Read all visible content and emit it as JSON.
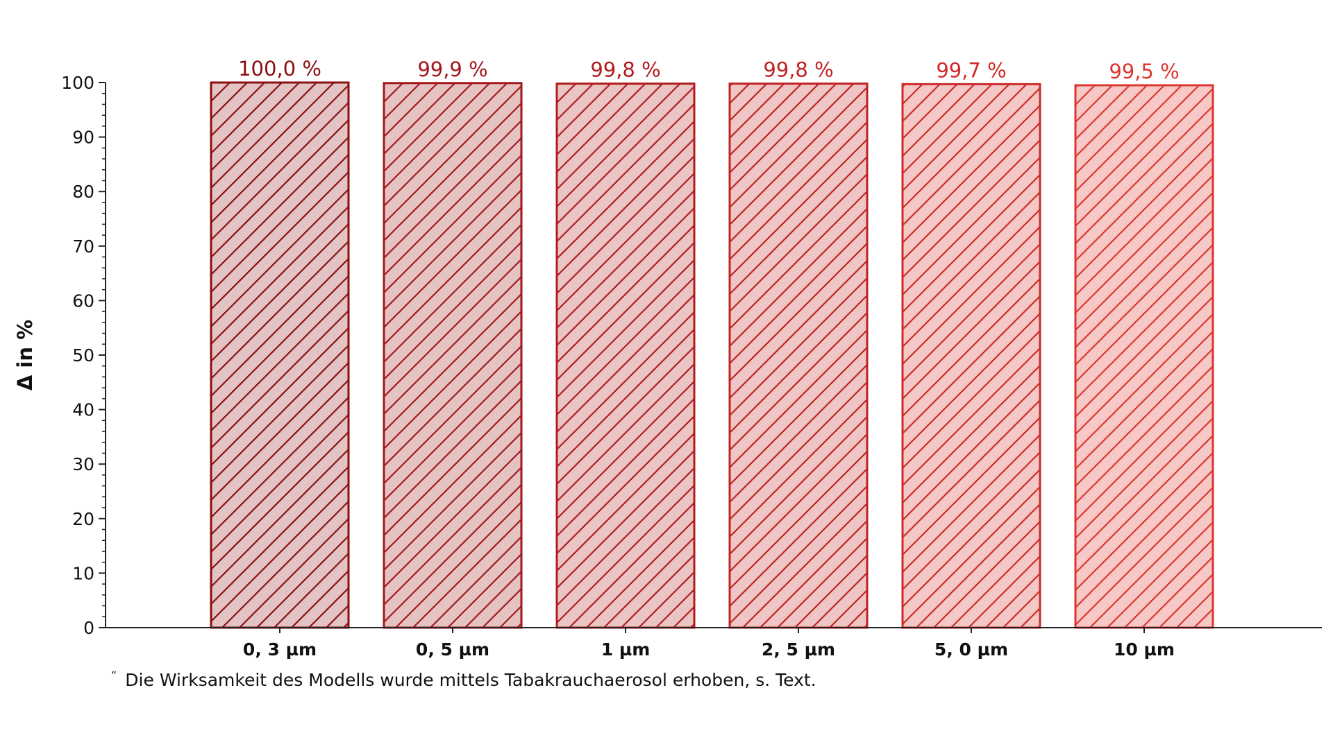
{
  "chart_data": {
    "type": "bar",
    "categories": [
      "0, 3 µm",
      "0, 5 µm",
      "1 µm",
      "2, 5 µm",
      "5, 0 µm",
      "10 µm"
    ],
    "values": [
      100.0,
      99.9,
      99.8,
      99.8,
      99.7,
      99.5
    ],
    "data_labels": [
      "100,0 %",
      "99,9 %",
      "99,8 %",
      "99,8 %",
      "99,7 %",
      "99,5 %"
    ],
    "ylabel": "Δ in %",
    "ylim": [
      0,
      100
    ],
    "yticks": [
      0,
      10,
      20,
      30,
      40,
      50,
      60,
      70,
      80,
      90,
      100
    ],
    "grid": false,
    "bar_stroke_colors": [
      "#8b0f0f",
      "#a3171b",
      "#b01c1f",
      "#bf2222",
      "#cf2a28",
      "#dd3530"
    ],
    "bar_fill_colors": [
      "#e3c3c3",
      "#e6c3c3",
      "#ebc4c4",
      "#efc6c5",
      "#f3c8c6",
      "#f6c9c7"
    ],
    "label_colors": [
      "#8b0f0f",
      "#a3171b",
      "#b01c1f",
      "#bf2222",
      "#cf2a28",
      "#dd3530"
    ]
  },
  "footnote": {
    "mark": "“",
    "text": "Die Wirksamkeit des Modells wurde mittels Tabakrauchaerosol erhoben, s. Text."
  }
}
